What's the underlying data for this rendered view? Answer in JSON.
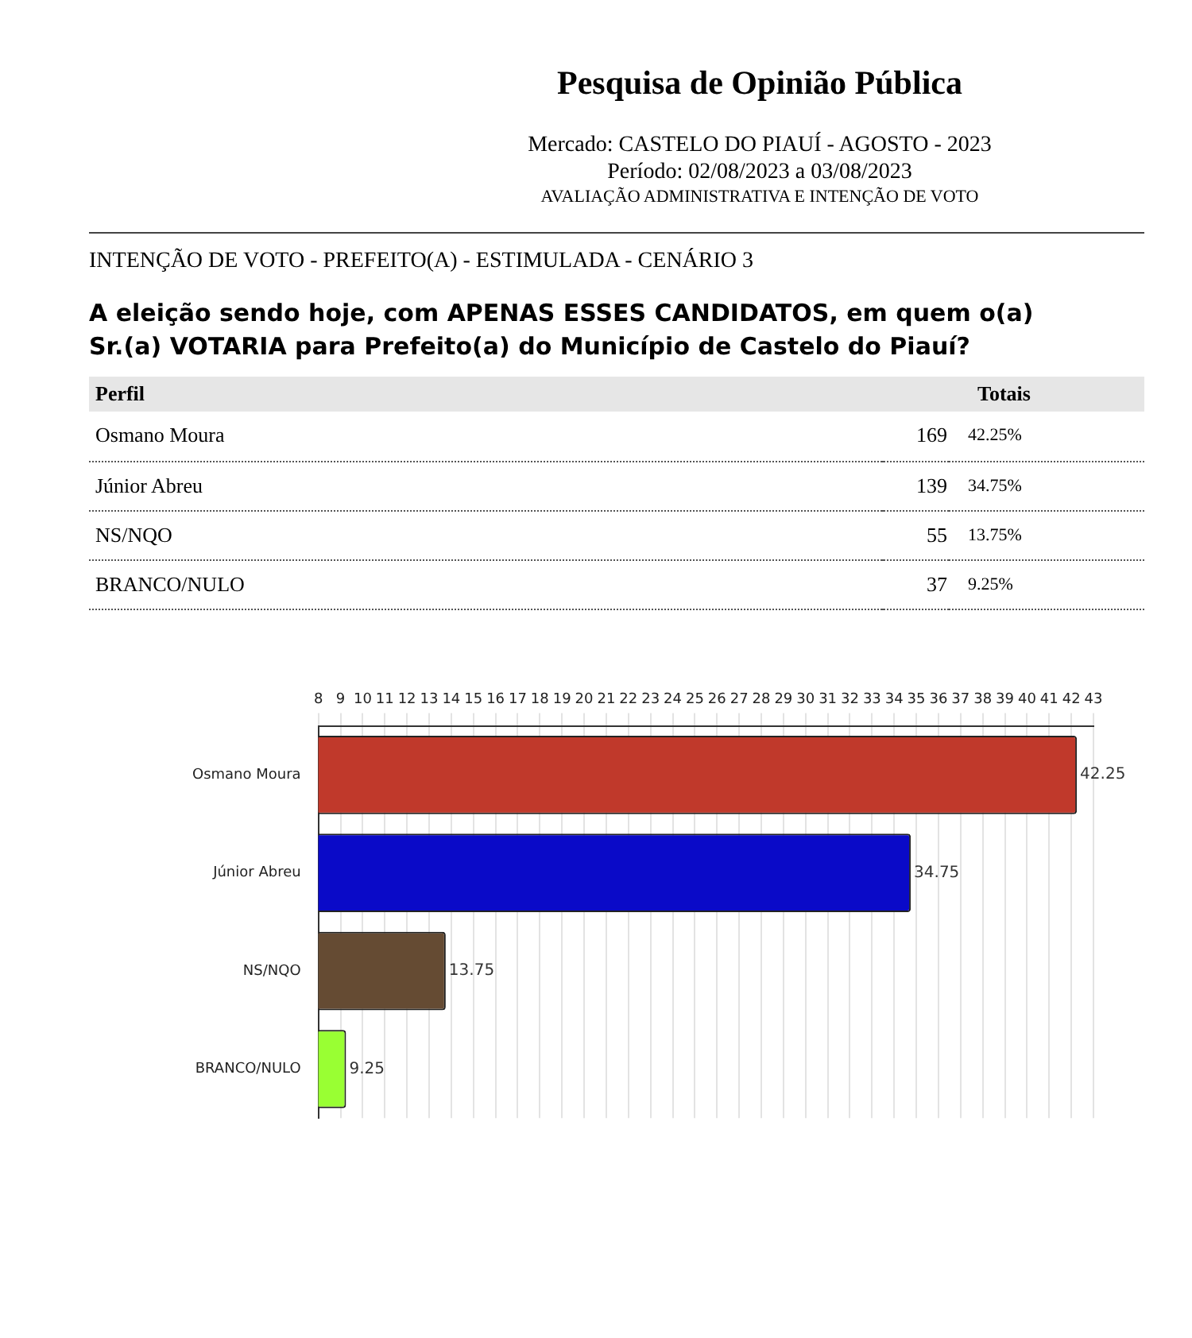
{
  "chart_data": [
    {
      "type": "other",
      "title": "Pesquisa de Opinião Pública",
      "annotations": [
        "Mercado: CASTELO DO PIAUÍ - AGOSTO - 2023",
        "Período: 02/08/2023 a 03/08/2023",
        "AVALIAÇÃO ADMINISTRATIVA E INTENÇÃO DE VOTO",
        "INTENÇÃO DE VOTO - PREFEITO(A) - ESTIMULADA - CENÁRIO 3",
        "A eleição sendo hoje, com APENAS ESSES CANDIDATOS, em quem o(a) Sr.(a) VOTARIA para Prefeito(a) do Município de Castelo do Piauí?",
        "Perfil",
        "Totais"
      ],
      "categories": [
        "Osmano Moura",
        "Júnior Abreu",
        "NS/NQO",
        "BRANCO/NULO"
      ],
      "data_labels": true,
      "series": [
        {
          "values": [
            169,
            139,
            55,
            37
          ]
        },
        {
          "values": [
            42.25,
            34.75,
            13.75,
            9.25
          ],
          "value_labels": [
            "42.25%",
            "34.75%",
            "13.75%",
            "9.25%"
          ]
        }
      ]
    },
    {
      "type": "bar",
      "orientation": "horizontal",
      "categories": [
        "Osmano Moura",
        "Júnior Abreu",
        "NS/NQO",
        "BRANCO/NULO"
      ],
      "values": [
        42.25,
        34.75,
        13.75,
        9.25
      ],
      "colors": [
        "#c0392b",
        "#0a0ac8",
        "#654b33",
        "#99ff33"
      ],
      "xlim": [
        8,
        43
      ],
      "xticks": [
        8,
        9,
        10,
        11,
        12,
        13,
        14,
        15,
        16,
        17,
        18,
        19,
        20,
        21,
        22,
        23,
        24,
        25,
        26,
        27,
        28,
        29,
        30,
        31,
        32,
        33,
        34,
        35,
        36,
        37,
        38,
        39,
        40,
        41,
        42,
        43
      ],
      "grid": "x",
      "data_labels": true
    }
  ]
}
